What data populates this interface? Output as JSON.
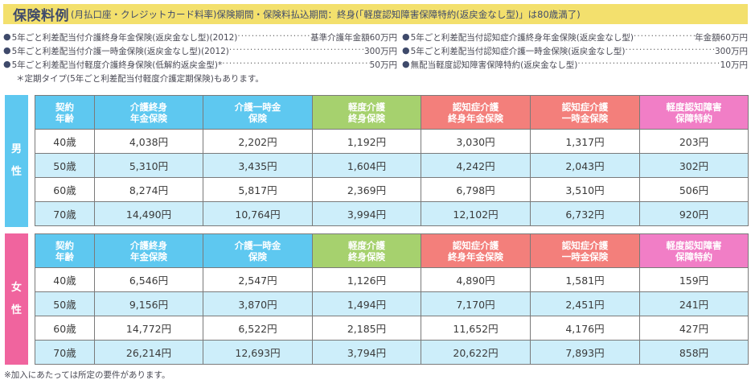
{
  "title": {
    "main": "保険料例",
    "sub": "(月払口座・クレジットカード料率)保険期間・保険料払込期間：終身(「軽度認知障害保障特約(返戻金なし型)」は80歳満了)"
  },
  "products": {
    "left": [
      {
        "name": "5年ごと利差配当付介護終身年金保険(返戻金なし型)(2012)",
        "amount": "基準介護年金額60万円"
      },
      {
        "name": "5年ごと利差配当付介護一時金保険(返戻金なし型)(2012)",
        "amount": "300万円"
      },
      {
        "name": "5年ごと利差配当付軽度介護終身保険(低解約返戻金型)*",
        "amount": "50万円"
      }
    ],
    "right": [
      {
        "name": "5年ごと利差配当付認知症介護終身年金保険(返戻金なし型)",
        "amount": "年金額60万円"
      },
      {
        "name": "5年ごと利差配当付認知症介護一時金保険(返戻金なし型)",
        "amount": "300万円"
      },
      {
        "name": "無配当軽度認知障害保障特約(返戻金なし型)",
        "amount": "10万円"
      }
    ],
    "note": "＊定期タイプ(5年ごと利差配当付軽度介護定期保険)もあります。"
  },
  "columns": [
    {
      "line1": "契約",
      "line2": "年齢",
      "color": "#5ec8f0"
    },
    {
      "line1": "介護終身",
      "line2": "年金保険",
      "color": "#5ec8f0"
    },
    {
      "line1": "介護一時金",
      "line2": "保険",
      "color": "#5ec8f0"
    },
    {
      "line1": "軽度介護",
      "line2": "終身保険",
      "color": "#a6d16e"
    },
    {
      "line1": "認知症介護",
      "line2": "終身年金保険",
      "color": "#f37f7b"
    },
    {
      "line1": "認知症介護",
      "line2": "一時金保険",
      "color": "#f37f7b"
    },
    {
      "line1": "軽度認知障害",
      "line2": "保障特約",
      "color": "#f17ec6"
    }
  ],
  "tables": {
    "male": {
      "label_1": "男",
      "label_2": "性",
      "color": "#5ec8f0",
      "rows": [
        [
          "40歳",
          "4,038円",
          "2,202円",
          "1,192円",
          "3,030円",
          "1,317円",
          "203円"
        ],
        [
          "50歳",
          "5,310円",
          "3,435円",
          "1,604円",
          "4,242円",
          "2,043円",
          "302円"
        ],
        [
          "60歳",
          "8,274円",
          "5,817円",
          "2,369円",
          "6,798円",
          "3,510円",
          "506円"
        ],
        [
          "70歳",
          "14,490円",
          "10,764円",
          "3,994円",
          "12,102円",
          "6,732円",
          "920円"
        ]
      ]
    },
    "female": {
      "label_1": "女",
      "label_2": "性",
      "color": "#f0649e",
      "rows": [
        [
          "40歳",
          "6,546円",
          "2,547円",
          "1,126円",
          "4,890円",
          "1,581円",
          "159円"
        ],
        [
          "50歳",
          "9,156円",
          "3,870円",
          "1,494円",
          "7,170円",
          "2,451円",
          "241円"
        ],
        [
          "60歳",
          "14,772円",
          "6,522円",
          "2,185円",
          "11,652円",
          "4,176円",
          "427円"
        ],
        [
          "70歳",
          "26,214円",
          "12,693円",
          "3,794円",
          "20,622円",
          "7,893円",
          "858円"
        ]
      ]
    }
  },
  "footnote": "※加入にあたっては所定の要件があります。",
  "colors": {
    "title_bg": "#f3e06d",
    "row_alt_bg": "#cdeefa"
  }
}
